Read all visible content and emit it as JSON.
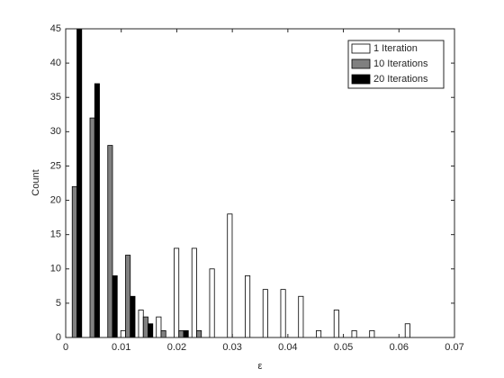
{
  "chart_data": {
    "type": "bar",
    "xlabel": "ε",
    "ylabel": "Count",
    "x": [
      0.0016,
      0.0048,
      0.008,
      0.0112,
      0.0144,
      0.0176,
      0.0208,
      0.024,
      0.0272,
      0.0304,
      0.0336,
      0.0368,
      0.04,
      0.0432,
      0.0464,
      0.0496,
      0.0528,
      0.056,
      0.0592,
      0.0624
    ],
    "series": [
      {
        "name": "1 Iteration",
        "color": "#ffffff",
        "values": [
          0,
          0,
          0,
          1,
          4,
          3,
          13,
          13,
          10,
          18,
          9,
          7,
          7,
          6,
          1,
          4,
          1,
          1,
          0,
          2
        ]
      },
      {
        "name": "10 Iterations",
        "color": "#808080",
        "values": [
          22,
          32,
          28,
          12,
          3,
          1,
          1,
          1,
          0,
          0,
          0,
          0,
          0,
          0,
          0,
          0,
          0,
          0,
          0,
          0
        ]
      },
      {
        "name": "20 Iterations",
        "color": "#000000",
        "values": [
          45,
          37,
          9,
          6,
          2,
          0,
          1,
          0,
          0,
          0,
          0,
          0,
          0,
          0,
          0,
          0,
          0,
          0,
          0,
          0
        ]
      }
    ],
    "xlim": [
      0,
      0.07
    ],
    "xticks": [
      0,
      0.01,
      0.02,
      0.03,
      0.04,
      0.05,
      0.06,
      0.07
    ],
    "ylim": [
      0,
      45
    ],
    "yticks": [
      0,
      5,
      10,
      15,
      20,
      25,
      30,
      35,
      40,
      45
    ],
    "legend": "top-right"
  }
}
